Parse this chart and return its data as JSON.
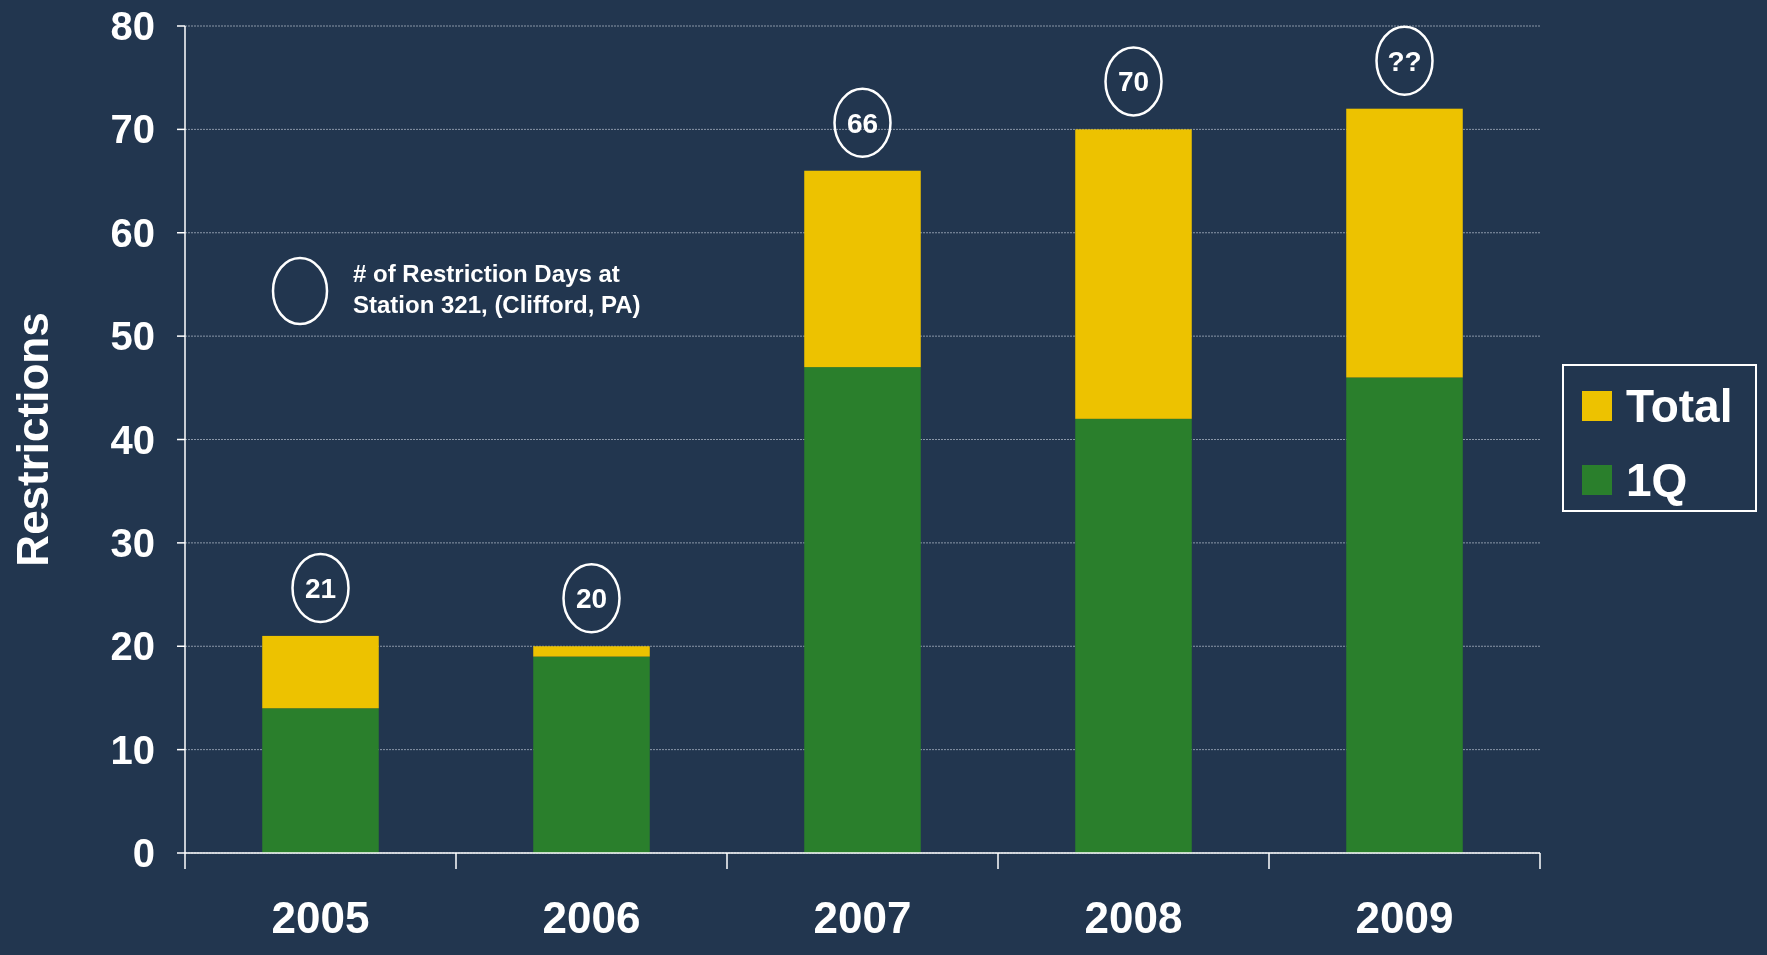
{
  "chart_data": {
    "type": "bar",
    "ylabel": "Restrictions",
    "categories": [
      "2005",
      "2006",
      "2007",
      "2008",
      "2009"
    ],
    "stacked": true,
    "series": [
      {
        "name": "1Q",
        "color": "#2a7f2c",
        "values": [
          14,
          19,
          47,
          42,
          46
        ]
      },
      {
        "name": "Total",
        "color": "#edc200",
        "values": [
          7,
          1,
          19,
          28,
          26
        ]
      }
    ],
    "totals": [
      "21",
      "20",
      "66",
      "70",
      "??"
    ],
    "annotations": [
      "# of Restriction Days at\nStation 321, (Clifford, PA)"
    ],
    "ylim": [
      0,
      80
    ],
    "yticks": [
      0,
      10,
      20,
      30,
      40,
      50,
      60,
      70,
      80
    ],
    "grid": "y",
    "legend": "right"
  }
}
